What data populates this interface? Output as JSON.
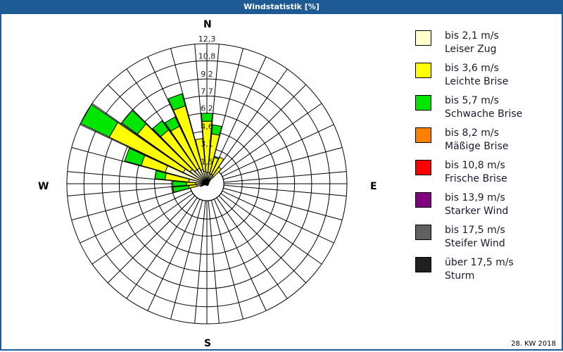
{
  "window": {
    "title": "Windstatistik [%]"
  },
  "compass": {
    "n": "N",
    "e": "E",
    "s": "S",
    "w": "W"
  },
  "footer": {
    "week": "28. KW 2018"
  },
  "legend": [
    {
      "speed": "bis 2,1 m/s",
      "name": "Leiser Zug",
      "color": "#ffffcc"
    },
    {
      "speed": "bis 3,6 m/s",
      "name": "Leichte Brise",
      "color": "#ffff00"
    },
    {
      "speed": "bis 5,7 m/s",
      "name": "Schwache Brise",
      "color": "#00e600"
    },
    {
      "speed": "bis 8,2 m/s",
      "name": "Mäßige Brise",
      "color": "#ff8000"
    },
    {
      "speed": "bis 10,8 m/s",
      "name": "Frische Brise",
      "color": "#ff0000"
    },
    {
      "speed": "bis 13,9 m/s",
      "name": "Starker Wind",
      "color": "#800080"
    },
    {
      "speed": "bis 17,5 m/s",
      "name": "Steifer Wind",
      "color": "#606060"
    },
    {
      "speed": "über 17,5 m/s",
      "name": "Sturm",
      "color": "#202020"
    }
  ],
  "chart_data": {
    "type": "polar-stacked-bar (wind rose)",
    "title": "Windstatistik [%]",
    "subtitle": "28. KW 2018",
    "radial_unit": "%",
    "radial_ticks": [
      1.5,
      3.1,
      4.6,
      6.2,
      7.7,
      9.2,
      10.8,
      12.3
    ],
    "radial_max": 12.3,
    "sector_width_deg": 10,
    "direction_labels": [
      "N",
      "E",
      "S",
      "W"
    ],
    "series": [
      "bis 2,1 m/s",
      "bis 3,6 m/s",
      "bis 5,7 m/s",
      "bis 8,2 m/s"
    ],
    "sectors": [
      {
        "dir": 0,
        "cumulative": [
          1.0,
          5.5,
          6.2,
          6.2
        ]
      },
      {
        "dir": 10,
        "cumulative": [
          1.0,
          4.4,
          5.2,
          5.2
        ]
      },
      {
        "dir": 20,
        "cumulative": [
          0.9,
          2.4,
          2.5,
          2.5
        ]
      },
      {
        "dir": 30,
        "cumulative": [
          0.9,
          2.6,
          2.6,
          2.6
        ]
      },
      {
        "dir": 40,
        "cumulative": [
          0.8,
          1.8,
          1.8,
          1.8
        ]
      },
      {
        "dir": 50,
        "cumulative": [
          0.3,
          0.3,
          0.3,
          0.3
        ]
      },
      {
        "dir": 60,
        "cumulative": [
          0.2,
          0.2,
          0.2,
          0.2
        ]
      },
      {
        "dir": 250,
        "cumulative": [
          0.6,
          0.6,
          0.6,
          0.6
        ]
      },
      {
        "dir": 260,
        "cumulative": [
          0.9,
          1.6,
          3.0,
          3.1
        ]
      },
      {
        "dir": 270,
        "cumulative": [
          1.0,
          1.8,
          3.0,
          3.0
        ]
      },
      {
        "dir": 280,
        "cumulative": [
          1.6,
          3.7,
          4.6,
          4.6
        ]
      },
      {
        "dir": 290,
        "cumulative": [
          3.8,
          6.0,
          7.5,
          7.5
        ]
      },
      {
        "dir": 300,
        "cumulative": [
          2.3,
          9.5,
          12.3,
          12.3
        ]
      },
      {
        "dir": 310,
        "cumulative": [
          1.8,
          7.5,
          9.2,
          9.2
        ]
      },
      {
        "dir": 320,
        "cumulative": [
          1.5,
          5.8,
          6.8,
          6.8
        ]
      },
      {
        "dir": 330,
        "cumulative": [
          1.5,
          5.6,
          6.5,
          6.5
        ]
      },
      {
        "dir": 340,
        "cumulative": [
          1.3,
          7.1,
          8.2,
          8.2
        ]
      },
      {
        "dir": 350,
        "cumulative": [
          1.1,
          4.0,
          4.0,
          4.0
        ]
      }
    ]
  }
}
